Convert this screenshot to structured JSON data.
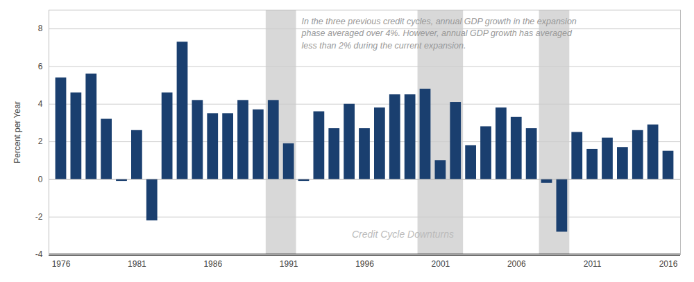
{
  "chart_data": {
    "type": "bar",
    "x": [
      1976,
      1977,
      1978,
      1979,
      1980,
      1981,
      1982,
      1983,
      1984,
      1985,
      1986,
      1987,
      1988,
      1989,
      1990,
      1991,
      1992,
      1993,
      1994,
      1995,
      1996,
      1997,
      1998,
      1999,
      2000,
      2001,
      2002,
      2003,
      2004,
      2005,
      2006,
      2007,
      2008,
      2009,
      2010,
      2011,
      2012,
      2013,
      2014,
      2015,
      2016
    ],
    "values": [
      5.4,
      4.6,
      5.6,
      3.2,
      -0.1,
      2.6,
      -2.2,
      4.6,
      7.3,
      4.2,
      3.5,
      3.5,
      4.2,
      3.7,
      4.2,
      1.9,
      -0.1,
      3.6,
      2.7,
      4.0,
      2.7,
      3.8,
      4.5,
      4.5,
      4.8,
      1.0,
      4.1,
      1.8,
      2.8,
      3.8,
      3.3,
      2.7,
      -0.2,
      -2.8,
      2.5,
      1.6,
      2.2,
      1.7,
      2.6,
      2.9,
      1.5
    ],
    "color": "#1a3f6f",
    "ylabel": "Percent per Year",
    "xlim": [
      1975.2,
      2016.8
    ],
    "ylim": [
      -4,
      9
    ],
    "xticks": [
      1976,
      1981,
      1986,
      1991,
      1996,
      2001,
      2006,
      2011,
      2016
    ],
    "yticks": [
      -4,
      -2,
      0,
      2,
      4,
      6,
      8
    ],
    "grid": true,
    "shaded_regions": [
      [
        1989.5,
        1991.5
      ],
      [
        1999.5,
        2002.5
      ],
      [
        2007.5,
        2009.5
      ]
    ],
    "shaded_color": "#d8d8d8",
    "annotations": [
      "In the three previous credit cycles, annual GDP growth in the expansion\nphase averaged over 4%. However, annual GDP growth has averaged\nless than 2% during the current expansion.",
      "Credit Cycle Downturns"
    ]
  }
}
